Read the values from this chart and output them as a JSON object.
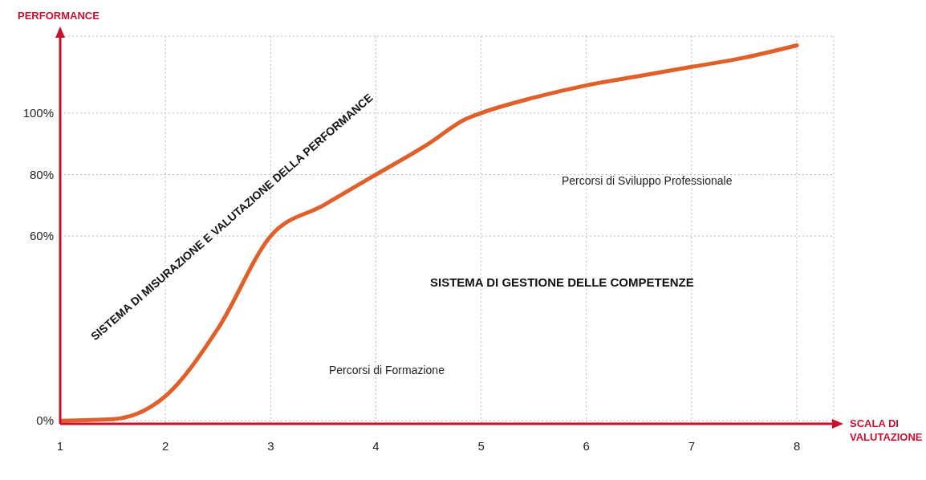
{
  "chart_data": {
    "type": "line",
    "ylabel": "PERFORMANCE",
    "xlabel": "SCALA DI VALUTAZIONE",
    "x": [
      1,
      1.5,
      2,
      2.5,
      3,
      3.5,
      4,
      4.5,
      4.85,
      5,
      5.5,
      6,
      6.5,
      7,
      7.5,
      8
    ],
    "series": [
      {
        "color": "#e0602a",
        "values": [
          0,
          0.5,
          8,
          30,
          60,
          70,
          80,
          90,
          98,
          100,
          105,
          109,
          112,
          115,
          118,
          122
        ]
      }
    ],
    "xlim": [
      1,
      8.35
    ],
    "xticks": [
      1,
      2,
      3,
      4,
      5,
      6,
      7,
      8
    ],
    "ylim": [
      -1,
      125
    ],
    "yticks": [
      {
        "value": 0,
        "label": "0%"
      },
      {
        "value": 60,
        "label": "60%"
      },
      {
        "value": 80,
        "label": "80%"
      },
      {
        "value": 100,
        "label": "100%"
      }
    ],
    "grid": true,
    "marker": "none",
    "line_style": "solid",
    "annotations": [
      "SISTEMA DI MISURAZIONE E VALUTAZIONE DELLA PERFORMANCE",
      "SISTEMA DI GESTIONE DELLE COMPETENZE",
      "Percorsi di Formazione",
      "Percorsi di Sviluppo Professionale"
    ]
  }
}
